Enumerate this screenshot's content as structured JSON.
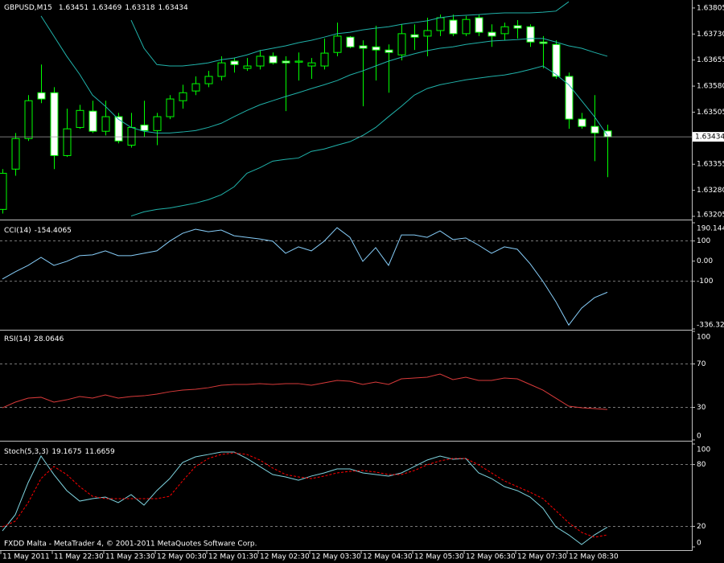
{
  "chart_data": [
    {
      "type": "candlestick",
      "title": "GBPUSD,M15",
      "categories": [
        "11 May 2011",
        null,
        null,
        null,
        "11 May 22:30",
        null,
        null,
        null,
        "11 May 23:30",
        null,
        null,
        null,
        "12 May 00:30",
        null,
        null,
        null,
        "12 May 01:30",
        null,
        null,
        null,
        "12 May 02:30",
        null,
        null,
        null,
        "12 May 03:30",
        null,
        null,
        null,
        "12 May 04:30",
        null,
        null,
        null,
        "12 May 05:30",
        null,
        null,
        null,
        "12 May 06:30",
        null,
        null,
        null,
        "12 May 07:30",
        null,
        null,
        null,
        "12 May 08:30",
        null,
        null,
        null
      ],
      "open": [
        1.63225,
        1.63341,
        1.63429,
        1.63561,
        1.63561,
        1.6338,
        1.63461,
        1.63508,
        1.6345,
        1.63492,
        1.6341,
        1.63468,
        1.63452,
        1.63492,
        1.63538,
        1.63566,
        1.63587,
        1.63608,
        1.63652,
        1.63631,
        1.63638,
        1.63666,
        1.63652,
        1.63649,
        1.63638,
        1.63638,
        1.63677,
        1.63721,
        1.63696,
        1.63693,
        1.63684,
        1.6367,
        1.63728,
        1.63724,
        1.6374,
        1.6377,
        1.63731,
        1.63777,
        1.63735,
        1.63731,
        1.63754,
        1.63751,
        1.63707,
        1.637,
        1.63608,
        1.63485,
        1.63464,
        1.63451
      ],
      "high": [
        1.63341,
        1.63445,
        1.63554,
        1.63642,
        1.63577,
        1.63515,
        1.63526,
        1.63538,
        1.63538,
        1.63503,
        1.63503,
        1.63538,
        1.63503,
        1.63554,
        1.63584,
        1.63608,
        1.63624,
        1.63666,
        1.63661,
        1.63661,
        1.63684,
        1.63677,
        1.63666,
        1.63677,
        1.63661,
        1.63717,
        1.63763,
        1.63724,
        1.63712,
        1.63754,
        1.637,
        1.63758,
        1.63758,
        1.63777,
        1.63786,
        1.63786,
        1.63782,
        1.63786,
        1.63758,
        1.63763,
        1.6377,
        1.63758,
        1.63724,
        1.63712,
        1.63619,
        1.63503,
        1.63554,
        1.63469
      ],
      "low": [
        1.63213,
        1.63322,
        1.63422,
        1.63531,
        1.63341,
        1.63376,
        1.63457,
        1.63445,
        1.63438,
        1.63415,
        1.63403,
        1.63434,
        1.6341,
        1.63485,
        1.63515,
        1.63554,
        1.63577,
        1.63596,
        1.63619,
        1.63624,
        1.63628,
        1.63642,
        1.63508,
        1.63596,
        1.63601,
        1.63628,
        1.63666,
        1.63689,
        1.63522,
        1.63596,
        1.63561,
        1.63654,
        1.63684,
        1.63666,
        1.63724,
        1.63724,
        1.63724,
        1.63724,
        1.63693,
        1.63712,
        1.63717,
        1.63693,
        1.63631,
        1.63601,
        1.63457,
        1.63457,
        1.63364,
        1.63318
      ],
      "close": [
        1.63329,
        1.63429,
        1.63538,
        1.63543,
        1.6338,
        1.63457,
        1.6351,
        1.6345,
        1.63492,
        1.63422,
        1.63461,
        1.63452,
        1.63492,
        1.63543,
        1.63561,
        1.63587,
        1.63608,
        1.63647,
        1.63642,
        1.63638,
        1.63666,
        1.63647,
        1.63647,
        1.63652,
        1.63647,
        1.63675,
        1.63724,
        1.63693,
        1.63689,
        1.63684,
        1.63677,
        1.63731,
        1.63721,
        1.6374,
        1.63777,
        1.63731,
        1.63772,
        1.63735,
        1.63724,
        1.63751,
        1.63747,
        1.63707,
        1.63703,
        1.63608,
        1.63485,
        1.63464,
        1.63445,
        1.63434
      ],
      "up_color": "#00ff00",
      "down_color": "#ffffff",
      "bands": {
        "color": "#20b2aa",
        "upper": [
          null,
          null,
          null,
          null,
          null,
          null,
          null,
          null,
          null,
          null,
          1.6377,
          1.63689,
          1.63642,
          1.63638,
          1.63638,
          1.63642,
          1.63647,
          1.63656,
          1.63661,
          1.6367,
          1.63682,
          1.63689,
          1.63696,
          1.63705,
          1.63712,
          1.63721,
          1.63731,
          1.63735,
          1.63742,
          1.63747,
          1.63751,
          1.63758,
          1.63763,
          1.63768,
          1.63777,
          1.63782,
          1.63784,
          1.63786,
          1.63789,
          1.63791,
          1.63791,
          1.63791,
          1.63793,
          1.63796,
          1.63823,
          null,
          null,
          null
        ],
        "middle": [
          null,
          null,
          null,
          1.63782,
          1.63724,
          1.63666,
          1.63614,
          1.63554,
          1.63522,
          1.63485,
          1.63461,
          1.6345,
          1.63445,
          1.63445,
          1.63448,
          1.63452,
          1.63461,
          1.63473,
          1.63492,
          1.6351,
          1.63526,
          1.63538,
          1.6355,
          1.63561,
          1.63573,
          1.63584,
          1.63596,
          1.63612,
          1.63624,
          1.63638,
          1.63652,
          1.63663,
          1.63673,
          1.63682,
          1.63689,
          1.63693,
          1.637,
          1.63705,
          1.6371,
          1.63712,
          1.63714,
          1.63717,
          1.63717,
          1.63707,
          1.63696,
          1.63689,
          1.63677,
          1.63666
        ],
        "lower": [
          null,
          null,
          null,
          null,
          null,
          null,
          null,
          null,
          null,
          null,
          1.63206,
          1.63218,
          1.63225,
          1.63229,
          1.63236,
          1.63243,
          1.63253,
          1.63267,
          1.6329,
          1.63329,
          1.63345,
          1.63364,
          1.63369,
          1.63373,
          1.63392,
          1.63399,
          1.6341,
          1.6342,
          1.63438,
          1.63461,
          1.63492,
          1.63522,
          1.63554,
          1.63573,
          1.63584,
          1.63591,
          1.63598,
          1.63603,
          1.63608,
          1.63612,
          1.63619,
          1.63628,
          1.63638,
          1.63614,
          1.63584,
          1.63538,
          1.63492,
          1.63438
        ]
      },
      "ylim": [
        1.63198,
        1.63828
      ],
      "yticks": [
        1.63805,
        {
          "value": 1.6373,
          "label": "1.63730"
        },
        1.63655,
        {
          "value": 1.6358,
          "label": "1.63580"
        },
        1.63505,
        1.63355,
        {
          "value": 1.6328,
          "label": "1.63280"
        },
        1.63205
      ],
      "footer": "FXDD Malta - MetaTrader 4, © 2001-2011 MetaQuotes Software Corp."
    },
    {
      "type": "line",
      "title": "CCI(14)",
      "series": [
        {
          "color": "#87cefa",
          "values": [
            -89,
            -53,
            -21,
            19,
            -21,
            -1,
            27,
            31,
            51,
            27,
            27,
            39,
            51,
            99,
            138,
            158,
            146,
            154,
            126,
            118,
            110,
            99,
            39,
            71,
            51,
            99,
            166,
            118,
            -1,
            67,
            -21,
            130,
            130,
            118,
            150,
            107,
            115,
            79,
            39,
            71,
            59,
            -13,
            -101,
            -201,
            -317,
            -233,
            -181,
            -154.4065
          ]
        }
      ],
      "ylim": [
        -336.322,
        190.144
      ],
      "yticks": [
        190.144,
        100,
        {
          "value": 0,
          "label": "0.00"
        },
        -100,
        -336.322
      ],
      "levels": [
        100,
        -100
      ]
    },
    {
      "type": "line",
      "title": "RSI(14)",
      "series": [
        {
          "color": "#d93a3a",
          "values": [
            29.6,
            34.8,
            38.5,
            39.3,
            34.8,
            37.0,
            40.0,
            38.5,
            41.5,
            38.5,
            40.0,
            40.7,
            42.2,
            44.4,
            45.9,
            46.7,
            48.1,
            50.4,
            51.1,
            51.1,
            51.9,
            51.1,
            51.9,
            51.9,
            50.4,
            52.6,
            54.8,
            54.1,
            51.1,
            53.3,
            51.1,
            56.3,
            57.0,
            57.8,
            60.7,
            55.6,
            57.8,
            54.8,
            54.8,
            57.0,
            56.3,
            51.1,
            45.9,
            38.5,
            31.1,
            29.6,
            28.9,
            28.0646
          ]
        }
      ],
      "ylim": [
        0,
        100
      ],
      "yticks": [
        100,
        70,
        30,
        0
      ],
      "levels": [
        70,
        30
      ]
    },
    {
      "type": "line",
      "title": "Stoch(5,3,3)",
      "series": [
        {
          "color": "#7fd4e0",
          "dashed": false,
          "values": [
            15.6,
            31.3,
            62.5,
            88.3,
            70.3,
            54.7,
            44.5,
            46.9,
            48.4,
            43.0,
            50.8,
            40.6,
            54.7,
            66.4,
            82.0,
            87.5,
            89.8,
            92.2,
            92.2,
            85.9,
            78.1,
            70.3,
            68.0,
            64.8,
            68.8,
            71.9,
            75.8,
            75.8,
            71.9,
            70.3,
            68.8,
            71.9,
            78.1,
            84.4,
            88.3,
            85.2,
            85.9,
            71.9,
            66.4,
            58.6,
            54.7,
            48.4,
            37.5,
            19.5,
            11.7,
            2.3,
            11.7,
            19.1675
          ]
        },
        {
          "color": "#ff0000",
          "dashed": true,
          "values": [
            19.5,
            25.0,
            43.0,
            66.4,
            78.1,
            70.3,
            58.6,
            49.2,
            46.9,
            46.9,
            46.9,
            46.9,
            46.9,
            49.2,
            64.1,
            78.1,
            85.9,
            89.8,
            91.4,
            89.8,
            84.4,
            76.6,
            70.3,
            68.0,
            66.4,
            68.8,
            71.9,
            73.4,
            74.2,
            72.7,
            70.3,
            70.3,
            74.2,
            79.7,
            83.6,
            85.9,
            85.9,
            79.7,
            71.9,
            64.1,
            58.6,
            53.1,
            46.9,
            35.2,
            23.4,
            14.1,
            9.4,
            11.6659
          ]
        }
      ],
      "ylim": [
        0,
        100
      ],
      "yticks": [
        100,
        80,
        20,
        0
      ],
      "levels": [
        80,
        20
      ]
    }
  ]
}
